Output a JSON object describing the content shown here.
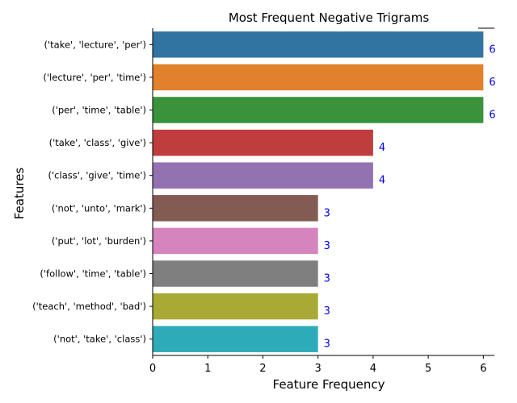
{
  "chart_data": {
    "type": "bar",
    "orientation": "horizontal",
    "title": "Most Frequent Negative Trigrams",
    "xlabel": "Feature Frequency",
    "ylabel": "Features",
    "xlim": [
      0,
      6.2
    ],
    "x_ticks": [
      "0",
      "1",
      "2",
      "3",
      "4",
      "5",
      "6"
    ],
    "grid": false,
    "categories": [
      "('take', 'lecture', 'per')",
      "('lecture', 'per', 'time')",
      "('per', 'time', 'table')",
      "('take', 'class', 'give')",
      "('class', 'give', 'time')",
      "('not', 'unto', 'mark')",
      "('put', 'lot', 'burden')",
      "('follow', 'time', 'table')",
      "('teach', 'method', 'bad')",
      "('not', 'take', 'class')"
    ],
    "values": [
      6,
      6,
      6,
      4,
      4,
      3,
      3,
      3,
      3,
      3
    ],
    "data_labels": [
      "6",
      "6",
      "6",
      "4",
      "4",
      "3",
      "3",
      "3",
      "3",
      "3"
    ],
    "colors": [
      "#3274a1",
      "#e1812c",
      "#3a923a",
      "#c03d3e",
      "#9372b2",
      "#845b53",
      "#d684bd",
      "#7f7f7f",
      "#a9aa35",
      "#2eabb8"
    ],
    "label_color": "#0000ff"
  }
}
